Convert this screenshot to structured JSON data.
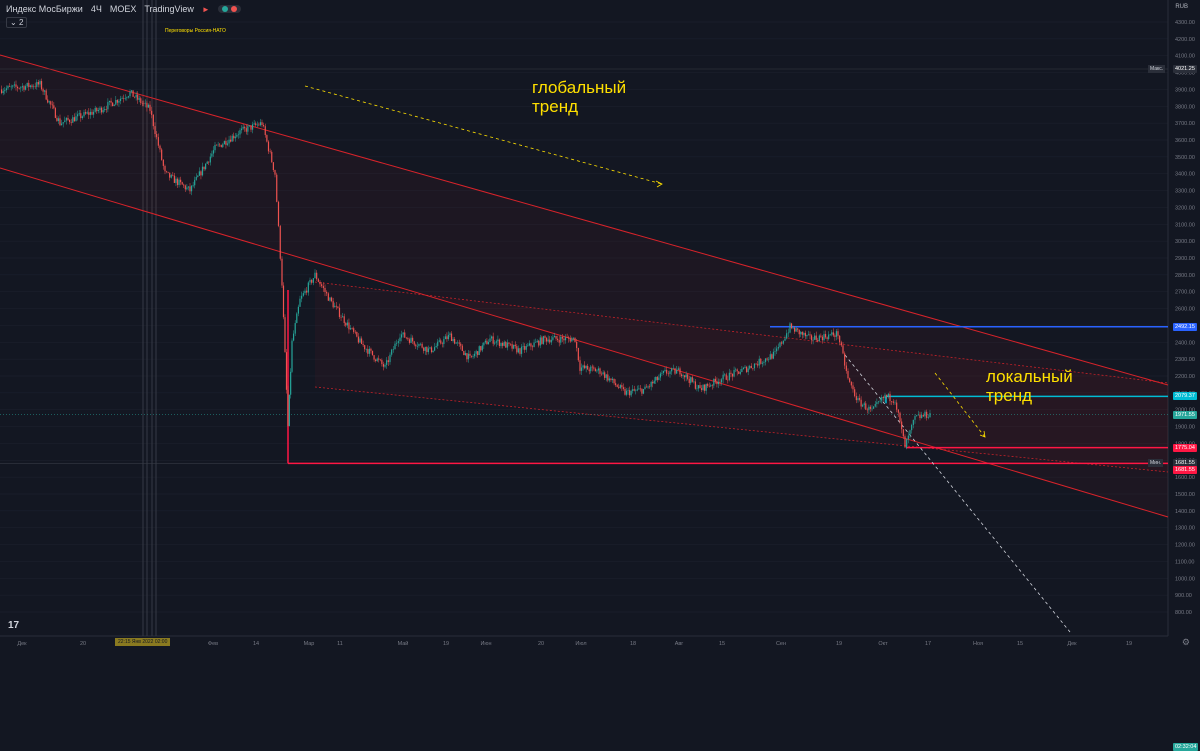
{
  "header": {
    "symbol": "Индекс МосБиржи",
    "interval": "4Ч",
    "exchange": "MOEX",
    "source": "TradingView",
    "collapse_label": "2",
    "currency": "RUB"
  },
  "colors": {
    "background": "#131722",
    "up": "#26a69a",
    "down": "#ef5350",
    "channel": "#d8232a",
    "support": "#ff1744",
    "resistance": "#2962ff",
    "local_level": "#00bcd4",
    "annotation": "#ffe000",
    "grid": "#1e2230"
  },
  "annotations": {
    "global_trend": [
      "глобальный",
      "тренд"
    ],
    "local_trend": [
      "локальный",
      "тренд"
    ],
    "event_label": "Переговоры Россия-НАТО",
    "time_marker": "22:15 Янв 2022 02:00"
  },
  "chart_data": {
    "type": "candlestick",
    "yticks": [
      800,
      900,
      1000,
      1100,
      1200,
      1300,
      1400,
      1500,
      1600,
      1700,
      1800,
      1900,
      2000,
      2100,
      2200,
      2300,
      2400,
      2500,
      2600,
      2700,
      2800,
      2900,
      3000,
      3100,
      3200,
      3300,
      3400,
      3500,
      3600,
      3700,
      3800,
      3900,
      4000,
      4100,
      4200,
      4300
    ],
    "ylim": [
      760,
      4360
    ],
    "x_labels": [
      "Дек",
      "20",
      "2022",
      "Фев",
      "14",
      "Мар",
      "11",
      "Май",
      "19",
      "Июн",
      "20",
      "Июл",
      "18",
      "Авг",
      "15",
      "Сен",
      "19",
      "Окт",
      "17",
      "Ноя",
      "15",
      "Дек",
      "19"
    ],
    "price_labels": [
      {
        "label": "Макс.",
        "value": "4021.25",
        "color": "#2a2e39"
      },
      {
        "label": "",
        "value": "2492.15",
        "color": "#2962ff"
      },
      {
        "label": "",
        "value": "2079.37",
        "color": "#00bcd4"
      },
      {
        "label": "",
        "value": "1971.55",
        "color": "#26a69a"
      },
      {
        "label": "",
        "value": "02:32:04",
        "color": "#26a69a"
      },
      {
        "label": "",
        "value": "1775.04",
        "color": "#ff1744"
      },
      {
        "label": "Мин.",
        "value": "1681.55",
        "color": "#2a2e39"
      },
      {
        "label": "",
        "value": "1681.55",
        "color": "#ff1744"
      }
    ],
    "high": 4021.25,
    "low": 1681.55,
    "last": 1971.55,
    "levels": [
      {
        "name": "resistance",
        "value": 2492.15
      },
      {
        "name": "local-level",
        "value": 2079.37
      },
      {
        "name": "local-support",
        "value": 1775.04
      },
      {
        "name": "support",
        "value": 1681.55
      }
    ],
    "path": [
      [
        0,
        3900
      ],
      [
        40,
        3930
      ],
      [
        60,
        3700
      ],
      [
        100,
        3780
      ],
      [
        130,
        3880
      ],
      [
        150,
        3780
      ],
      [
        165,
        3400
      ],
      [
        190,
        3300
      ],
      [
        215,
        3550
      ],
      [
        240,
        3650
      ],
      [
        262,
        3700
      ],
      [
        275,
        3400
      ],
      [
        282,
        2750
      ],
      [
        288,
        1900
      ],
      [
        292,
        2400
      ],
      [
        300,
        2650
      ],
      [
        315,
        2800
      ],
      [
        330,
        2650
      ],
      [
        360,
        2400
      ],
      [
        385,
        2250
      ],
      [
        400,
        2450
      ],
      [
        430,
        2350
      ],
      [
        450,
        2440
      ],
      [
        470,
        2300
      ],
      [
        490,
        2420
      ],
      [
        520,
        2350
      ],
      [
        545,
        2420
      ],
      [
        575,
        2420
      ],
      [
        580,
        2250
      ],
      [
        600,
        2230
      ],
      [
        625,
        2100
      ],
      [
        645,
        2120
      ],
      [
        665,
        2220
      ],
      [
        680,
        2230
      ],
      [
        700,
        2120
      ],
      [
        720,
        2180
      ],
      [
        745,
        2240
      ],
      [
        775,
        2330
      ],
      [
        790,
        2490
      ],
      [
        810,
        2420
      ],
      [
        838,
        2450
      ],
      [
        848,
        2180
      ],
      [
        858,
        2050
      ],
      [
        872,
        1990
      ],
      [
        885,
        2080
      ],
      [
        895,
        2060
      ],
      [
        905,
        1780
      ],
      [
        915,
        1950
      ],
      [
        930,
        1975
      ]
    ]
  }
}
